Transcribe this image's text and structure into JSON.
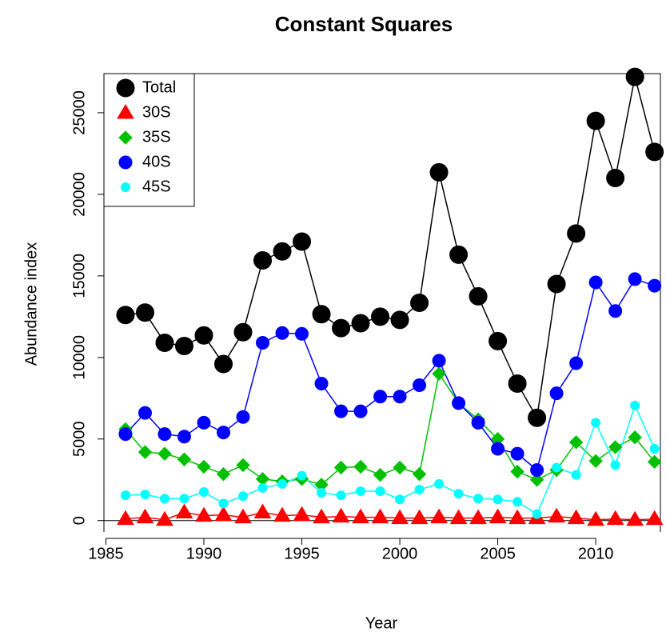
{
  "chart_data": {
    "type": "line",
    "title": "Constant Squares",
    "x_label": "Year",
    "y_label": "Abundance index",
    "x": [
      1986,
      1987,
      1988,
      1989,
      1990,
      1991,
      1992,
      1993,
      1994,
      1995,
      1996,
      1997,
      1998,
      1999,
      2000,
      2001,
      2002,
      2003,
      2004,
      2005,
      2006,
      2007,
      2008,
      2009,
      2010,
      2011,
      2012,
      2013
    ],
    "series": [
      {
        "name": "Total",
        "color": "#000000",
        "marker": "circle-large",
        "values": [
          12600,
          12750,
          10900,
          10700,
          11350,
          9600,
          11550,
          15950,
          16500,
          17100,
          12650,
          11800,
          12100,
          12500,
          12300,
          13350,
          21350,
          16300,
          13750,
          11000,
          8400,
          6300,
          14500,
          17600,
          24500,
          21000,
          27200,
          22600
        ]
      },
      {
        "name": "30S",
        "color": "#ff0000",
        "marker": "triangle",
        "values": [
          100,
          200,
          50,
          500,
          300,
          350,
          200,
          500,
          300,
          350,
          200,
          250,
          200,
          200,
          150,
          150,
          200,
          150,
          150,
          200,
          150,
          150,
          250,
          150,
          50,
          100,
          50,
          100
        ]
      },
      {
        "name": "35S",
        "color": "#00c000",
        "marker": "diamond",
        "values": [
          5600,
          4200,
          4100,
          3750,
          3300,
          2850,
          3400,
          2550,
          2400,
          2550,
          2200,
          3250,
          3300,
          2800,
          3250,
          2850,
          9000,
          7200,
          6200,
          5000,
          3000,
          2500,
          3100,
          4800,
          3650,
          4500,
          5100,
          3600
        ]
      },
      {
        "name": "40S",
        "color": "#0000ff",
        "marker": "circle",
        "values": [
          5300,
          6600,
          5300,
          5150,
          6000,
          5400,
          6350,
          10900,
          11500,
          11450,
          8400,
          6700,
          6700,
          7600,
          7600,
          8300,
          9800,
          7200,
          6000,
          4400,
          4100,
          3100,
          7800,
          9650,
          14600,
          12850,
          14800,
          14400
        ]
      },
      {
        "name": "45S",
        "color": "#00ffff",
        "marker": "circle-small",
        "values": [
          1550,
          1600,
          1350,
          1350,
          1750,
          1050,
          1500,
          2000,
          2250,
          2750,
          1700,
          1550,
          1800,
          1800,
          1300,
          1900,
          2250,
          1650,
          1350,
          1300,
          1150,
          400,
          3250,
          2800,
          6000,
          3400,
          7050,
          4400
        ]
      }
    ],
    "hline": 0,
    "xlim": [
      1984.9,
      2013.3
    ],
    "ylim": [
      -700,
      27400
    ],
    "xticks": [
      1985,
      1990,
      1995,
      2000,
      2005,
      2010
    ],
    "yticks": [
      0,
      5000,
      10000,
      15000,
      20000,
      25000
    ],
    "legend": "top-left"
  }
}
